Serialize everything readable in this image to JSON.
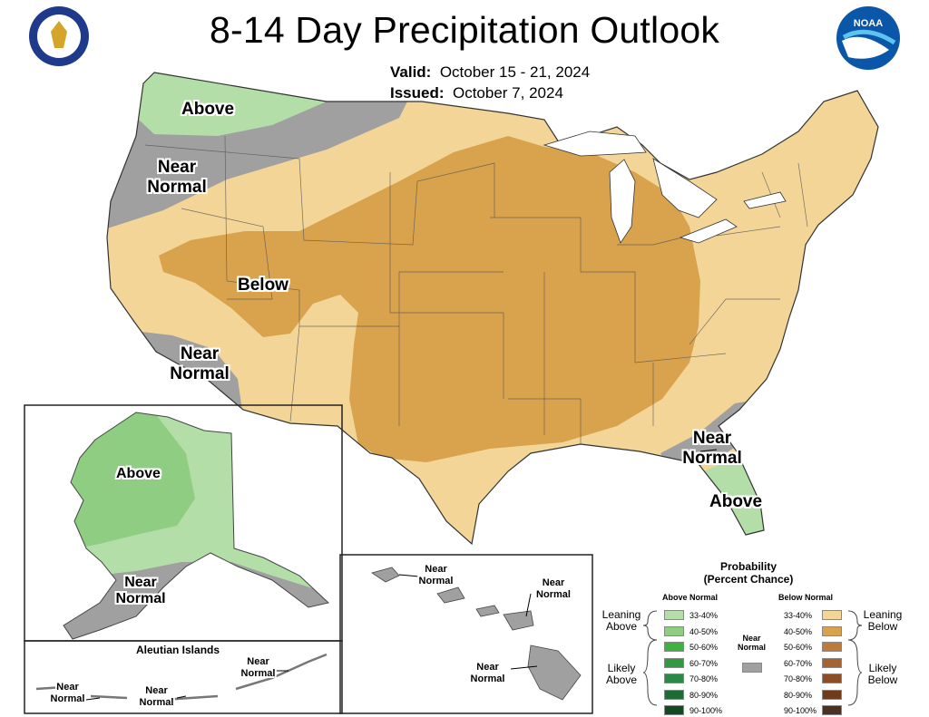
{
  "title": "8-14 Day Precipitation Outlook",
  "valid": {
    "label": "Valid:",
    "value": "October 15 - 21, 2024"
  },
  "issued": {
    "label": "Issued:",
    "value": "October 7, 2024"
  },
  "logos": {
    "left": "U.S. Department of Commerce seal",
    "right": "NOAA"
  },
  "colors": {
    "above_33_40": "#b3dea8",
    "above_40_50": "#8fce82",
    "above_50_60": "#3eb23e",
    "above_60_70": "#2f9a42",
    "above_70_80": "#2a8a45",
    "above_80_90": "#1f6b35",
    "above_90_100": "#134a21",
    "below_33_40": "#f2d597",
    "below_40_50": "#d9a24d",
    "below_50_60": "#bd7a3b",
    "below_60_70": "#a4632f",
    "below_70_80": "#8b4e26",
    "below_80_90": "#6e3b1d",
    "below_90_100": "#4b3122",
    "near_normal": "#a0a0a0"
  },
  "map_labels": {
    "nw_above": "Above",
    "nw_near_1": "Near",
    "nw_near_2": "Normal",
    "below": "Below",
    "sw_near_1": "Near",
    "sw_near_2": "Normal",
    "se_near_1": "Near",
    "se_near_2": "Normal",
    "fl_above": "Above",
    "ak_above": "Above",
    "ak_near_1": "Near",
    "ak_near_2": "Normal",
    "aleutian_title": "Aleutian Islands",
    "al_near_a1": "Near",
    "al_near_a2": "Normal",
    "al_near_b1": "Near",
    "al_near_b2": "Normal",
    "al_near_c1": "Near",
    "al_near_c2": "Normal",
    "hi_near_a1": "Near",
    "hi_near_a2": "Normal",
    "hi_near_b1": "Near",
    "hi_near_b2": "Normal",
    "hi_near_c1": "Near",
    "hi_near_c2": "Normal"
  },
  "legend": {
    "title_1": "Probability",
    "title_2": "(Percent Chance)",
    "above_header": "Above Normal",
    "below_header": "Below Normal",
    "near_1": "Near",
    "near_2": "Normal",
    "above_rows": [
      "33-40%",
      "40-50%",
      "50-60%",
      "60-70%",
      "70-80%",
      "80-90%",
      "90-100%"
    ],
    "below_rows": [
      "33-40%",
      "40-50%",
      "50-60%",
      "60-70%",
      "70-80%",
      "80-90%",
      "90-100%"
    ],
    "leaning_above_1": "Leaning",
    "leaning_above_2": "Above",
    "likely_above_1": "Likely",
    "likely_above_2": "Above",
    "leaning_below_1": "Leaning",
    "leaning_below_2": "Below",
    "likely_below_1": "Likely",
    "likely_below_2": "Below"
  }
}
